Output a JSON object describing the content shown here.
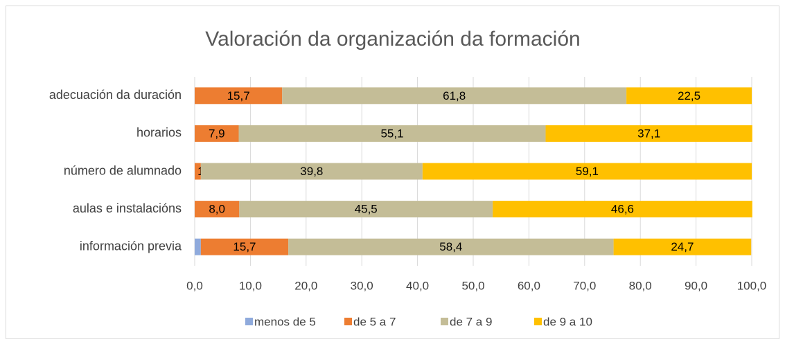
{
  "chart_data": {
    "type": "stacked_bar_horizontal",
    "title": "Valoración da organización da formación",
    "categories": [
      "adecuación da duración",
      "horarios",
      "número de alumnado",
      "aulas e instalacións",
      "información previa"
    ],
    "series": [
      {
        "name": "menos de 5",
        "color": "#8faadc",
        "values": [
          0,
          0,
          0,
          0,
          1.1
        ]
      },
      {
        "name": "de 5 a 7",
        "color": "#ed7d31",
        "values": [
          15.7,
          7.9,
          1.1,
          8.0,
          15.7
        ],
        "value_labels": [
          "15,7",
          "7,9",
          "1,1",
          "8,0",
          "15,7"
        ]
      },
      {
        "name": "de 7 a 9",
        "color": "#c4bd97",
        "values": [
          61.8,
          55.1,
          39.8,
          45.5,
          58.4
        ],
        "value_labels": [
          "61,8",
          "55,1",
          "39,8",
          "45,5",
          "58,4"
        ]
      },
      {
        "name": "de 9 a 10",
        "color": "#ffc000",
        "values": [
          22.5,
          37.1,
          59.1,
          46.6,
          24.7
        ],
        "value_labels": [
          "22,5",
          "37,1",
          "59,1",
          "46,6",
          "24,7"
        ]
      }
    ],
    "xlim": [
      0,
      100
    ],
    "xticks": [
      {
        "value": 0,
        "label": "0,0"
      },
      {
        "value": 10,
        "label": "10,0"
      },
      {
        "value": 20,
        "label": "20,0"
      },
      {
        "value": 30,
        "label": "30,0"
      },
      {
        "value": 40,
        "label": "40,0"
      },
      {
        "value": 50,
        "label": "50,0"
      },
      {
        "value": 60,
        "label": "60,0"
      },
      {
        "value": 70,
        "label": "70,0"
      },
      {
        "value": 80,
        "label": "80,0"
      },
      {
        "value": 90,
        "label": "90,0"
      },
      {
        "value": 100,
        "label": "100,0"
      }
    ],
    "grid": true,
    "legend": "bottom"
  }
}
